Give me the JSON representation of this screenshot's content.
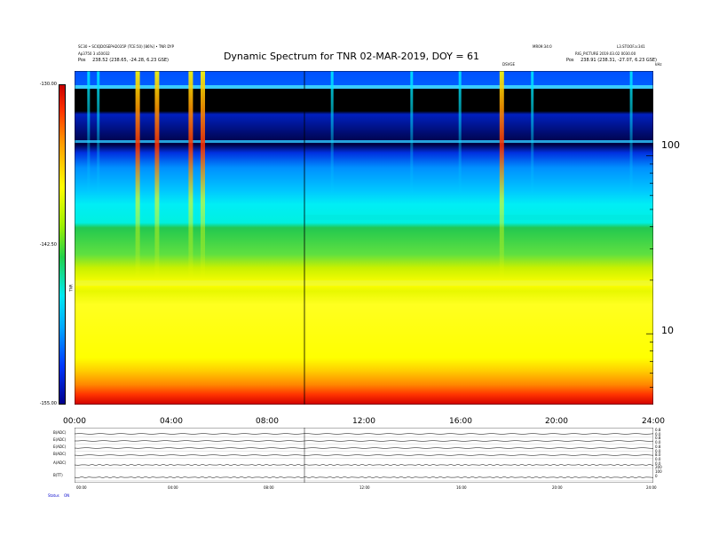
{
  "header": {
    "left_line1": "SC30 • SCIQDOSEPH2035P (TCE:50) [86%] • TNR DYP",
    "left_line2": "Ap3750 3 a50032",
    "left_line3_label": "Pos",
    "left_line3_value": "238.52 (238.65, -24.28, 6.23 GSE)",
    "center_right": "MR09:34:0",
    "right_line1": "L3.STOOF.a:341",
    "right_line2": "RIG_PICTURE 2019.03.02 0030.00",
    "right_line3_label": "Pos",
    "right_line3_value": "238.91 (238.31, -27.07, 6.23 GSE)",
    "small_tag": "DSVGE",
    "corner_tag": "kHz"
  },
  "title": "Dynamic Spectrum for TNR 02-MAR-2019, DOY = 61",
  "colorbar": {
    "label": "TNR",
    "ticks": [
      "-130.00",
      "-142.50",
      "-155.00"
    ]
  },
  "panel_labels": [
    "B(ADC)",
    "E(ADC)",
    "E(ADC)",
    "B(ADC)",
    "A(ADC)",
    "B(TT)"
  ],
  "panel_right_ticks": [
    "0.8",
    "0.0",
    "0.8",
    "0.0",
    "0.8",
    "0.0",
    "8.0",
    "0.0",
    "0.0",
    "200",
    "100",
    "0"
  ],
  "footer_label": "Status",
  "footer_value": "ON",
  "chart_data": {
    "type": "heatmap",
    "title": "Dynamic Spectrum for TNR 02-MAR-2019, DOY = 61",
    "xlabel": "",
    "ylabel": "",
    "x_ticks": [
      "00:00",
      "04:00",
      "08:00",
      "12:00",
      "16:00",
      "20:00",
      "24:00"
    ],
    "x_range_hours": [
      0,
      24
    ],
    "y_scale": "log",
    "y_ticks": [
      100,
      10
    ],
    "y_range_kHz": [
      4,
      300
    ],
    "colorbar_range": [
      -155.0,
      -130.0
    ],
    "colormap": [
      "#c80000",
      "#ff3300",
      "#ff9900",
      "#ffff00",
      "#9ff000",
      "#22d04a",
      "#00e8f0",
      "#00a8ff",
      "#0038ff",
      "#00008c",
      "#000000"
    ],
    "event_marker_hour": 9.5,
    "bursts_hours": [
      0.6,
      1.0,
      2.6,
      3.4,
      4.8,
      5.3,
      10.7,
      14.0,
      16.0,
      17.7,
      19.0,
      23.1
    ]
  }
}
